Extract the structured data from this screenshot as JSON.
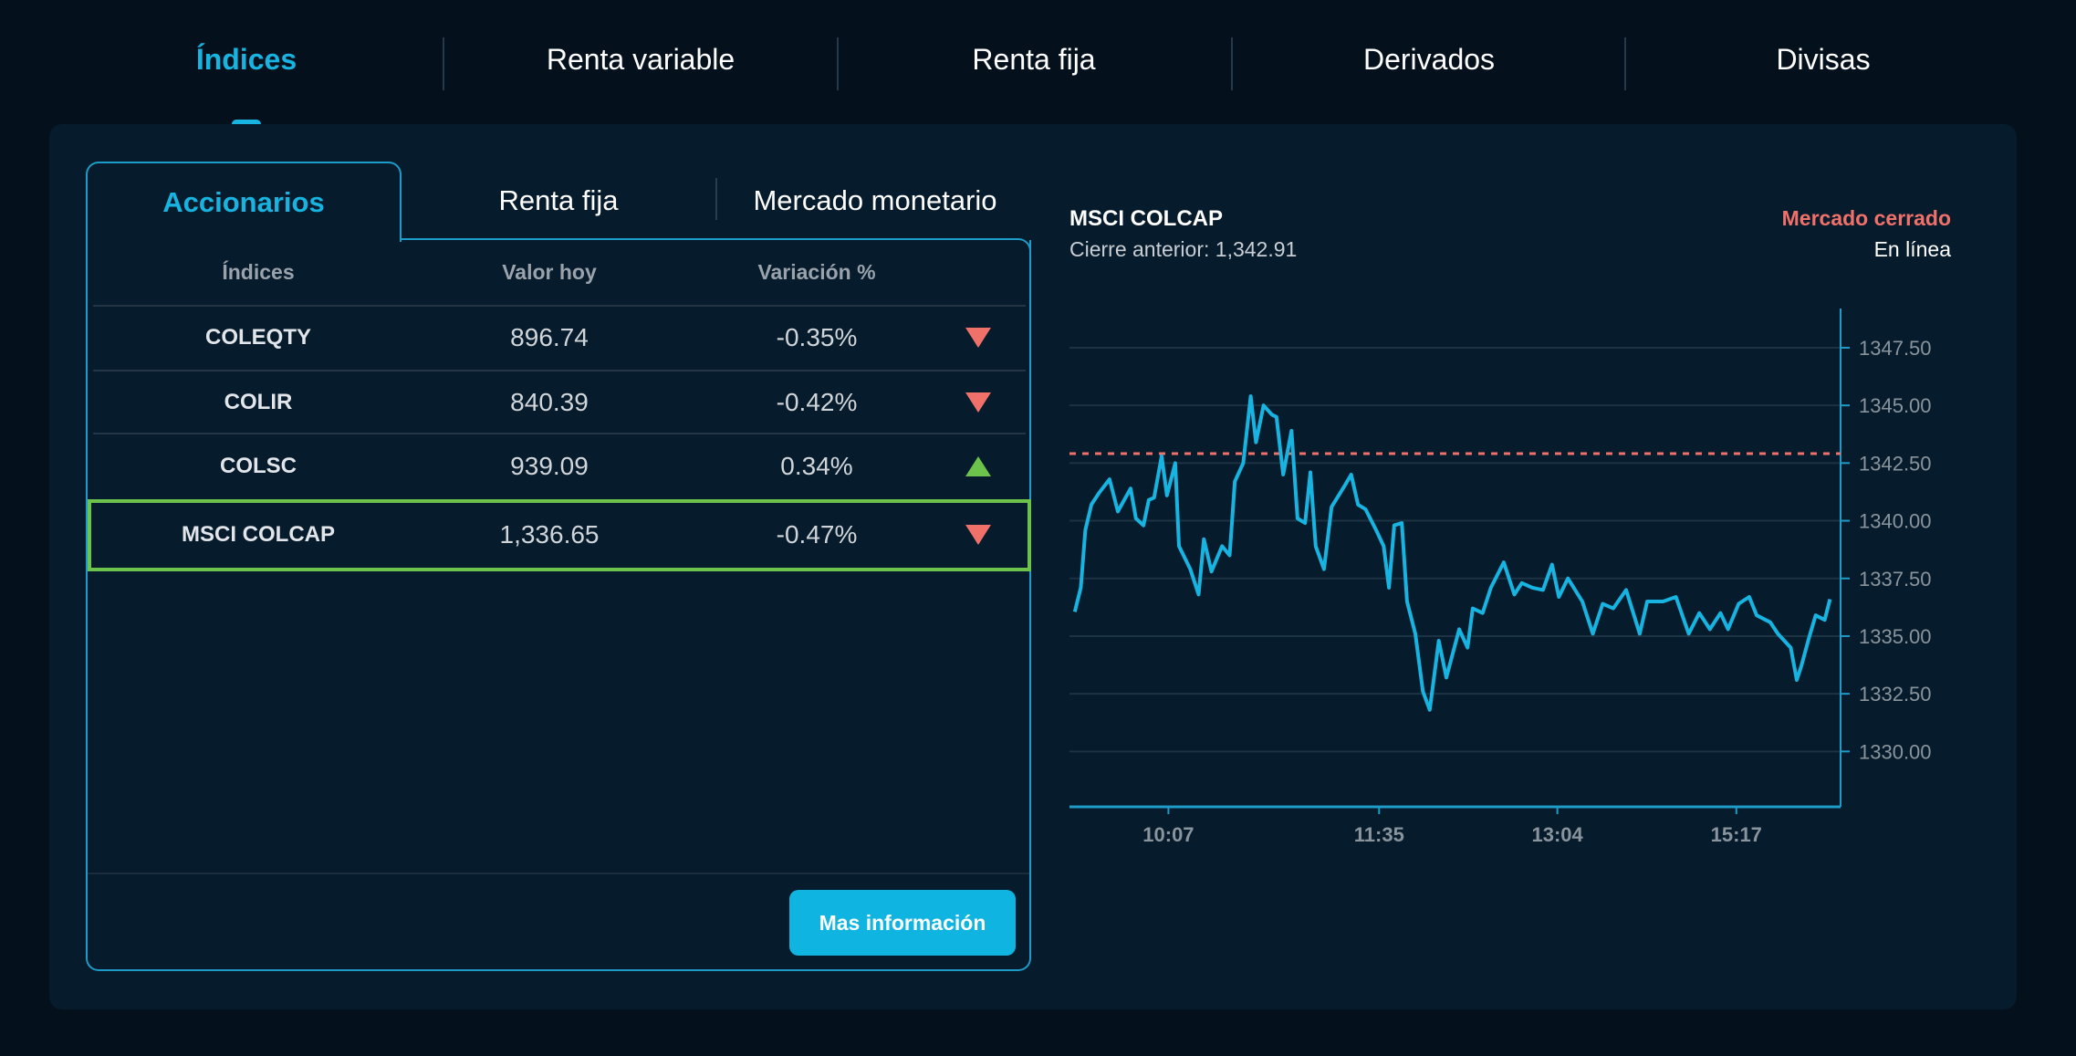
{
  "top_nav": {
    "items": [
      {
        "label": "Índices",
        "active": true
      },
      {
        "label": "Renta variable",
        "active": false
      },
      {
        "label": "Renta fija",
        "active": false
      },
      {
        "label": "Derivados",
        "active": false
      },
      {
        "label": "Divisas",
        "active": false
      }
    ]
  },
  "sub_tabs": {
    "items": [
      {
        "label": "Accionarios",
        "active": true
      },
      {
        "label": "Renta fija",
        "active": false
      },
      {
        "label": "Mercado monetario",
        "active": false
      }
    ]
  },
  "table": {
    "headers": [
      "Índices",
      "Valor hoy",
      "Variación %"
    ],
    "rows": [
      {
        "name": "COLEQTY",
        "value": "896.74",
        "change": "-0.35%",
        "direction": "down"
      },
      {
        "name": "COLIR",
        "value": "840.39",
        "change": "-0.42%",
        "direction": "down"
      },
      {
        "name": "COLSC",
        "value": "939.09",
        "change": "0.34%",
        "direction": "up"
      },
      {
        "name": "MSCI COLCAP",
        "value": "1,336.65",
        "change": "-0.47%",
        "direction": "down",
        "selected": true
      }
    ]
  },
  "more_info_button": "Mas información",
  "chart_header": {
    "title": "MSCI COLCAP",
    "previous_close": "Cierre anterior: 1,342.91",
    "market_status": "Mercado cerrado",
    "mode": "En línea"
  },
  "colors": {
    "accent": "#17b4e2",
    "down": "#f0706a",
    "up": "#6cc24a",
    "background": "#04111c",
    "panel": "#061b2b"
  },
  "chart_data": {
    "type": "line",
    "title": "MSCI COLCAP",
    "xlabel": "",
    "ylabel": "",
    "ylim": [
      1327.6,
      1349.2
    ],
    "xlim": [
      -0.7,
      101.4
    ],
    "y_ticks": [
      1347.5,
      1345.0,
      1342.5,
      1340.0,
      1337.5,
      1335.0,
      1332.5,
      1330.0
    ],
    "y_tick_labels": [
      "1347.50",
      "1345.00",
      "1342.50",
      "1340.00",
      "1337.50",
      "1335.00",
      "1332.50",
      "1330.00"
    ],
    "x_ticks": [
      {
        "index": 12.4,
        "label": "10:07"
      },
      {
        "index": 40.3,
        "label": "11:35"
      },
      {
        "index": 63.9,
        "label": "13:04"
      },
      {
        "index": 87.6,
        "label": "15:17"
      }
    ],
    "reference_line": {
      "name": "Cierre anterior",
      "value": 1342.91
    },
    "grid": true,
    "series": [
      {
        "name": "MSCI COLCAP",
        "x": [
          0,
          0.8,
          1.4,
          2.2,
          3.2,
          4.6,
          5.7,
          7.4,
          8.1,
          9.1,
          9.8,
          10.5,
          11.5,
          12.2,
          13.3,
          13.8,
          15.3,
          16.4,
          17.1,
          18.1,
          19.5,
          20.5,
          21.2,
          22.3,
          23.3,
          24.0,
          25.0,
          26.1,
          26.7,
          27.6,
          28.7,
          29.5,
          30.5,
          31.2,
          31.9,
          33.0,
          34.0,
          35.7,
          36.6,
          37.5,
          38.5,
          39.9,
          40.9,
          41.6,
          42.3,
          43.3,
          44.0,
          45.1,
          46.1,
          47.0,
          48.2,
          49.2,
          50.9,
          52.0,
          52.7,
          54.0,
          55.1,
          56.8,
          58.2,
          59.2,
          60.6,
          62.0,
          63.2,
          64.1,
          65.3,
          67.2,
          68.6,
          69.9,
          71.3,
          73.0,
          74.8,
          75.8,
          77.9,
          79.6,
          81.3,
          82.7,
          84.1,
          85.5,
          86.5,
          87.9,
          89.3,
          90.3,
          92.1,
          93.1,
          94.8,
          95.6,
          96.2,
          97.2,
          98.1,
          99.3,
          100
        ],
        "values": [
          1336.05,
          1337.1,
          1339.6,
          1340.7,
          1341.2,
          1341.8,
          1340.4,
          1341.4,
          1340.1,
          1339.8,
          1340.9,
          1341.0,
          1342.8,
          1341.1,
          1342.5,
          1338.9,
          1337.9,
          1336.8,
          1339.2,
          1337.8,
          1338.9,
          1338.5,
          1341.7,
          1342.5,
          1345.4,
          1343.4,
          1345.0,
          1344.6,
          1344.5,
          1342.0,
          1343.9,
          1340.1,
          1339.9,
          1342.1,
          1338.9,
          1337.9,
          1340.6,
          1341.5,
          1342.0,
          1340.7,
          1340.5,
          1339.6,
          1338.9,
          1337.1,
          1339.8,
          1339.9,
          1336.5,
          1335.1,
          1332.6,
          1331.8,
          1334.8,
          1333.2,
          1335.3,
          1334.5,
          1336.2,
          1336.0,
          1337.1,
          1338.2,
          1336.8,
          1337.3,
          1337.1,
          1337.0,
          1338.1,
          1336.7,
          1337.5,
          1336.5,
          1335.1,
          1336.4,
          1336.2,
          1337.0,
          1335.1,
          1336.5,
          1336.5,
          1336.7,
          1335.1,
          1336.0,
          1335.3,
          1336.0,
          1335.3,
          1336.4,
          1336.7,
          1335.9,
          1335.6,
          1335.1,
          1334.5,
          1333.1,
          1333.7,
          1334.9,
          1335.9,
          1335.7,
          1336.6
        ]
      }
    ]
  }
}
